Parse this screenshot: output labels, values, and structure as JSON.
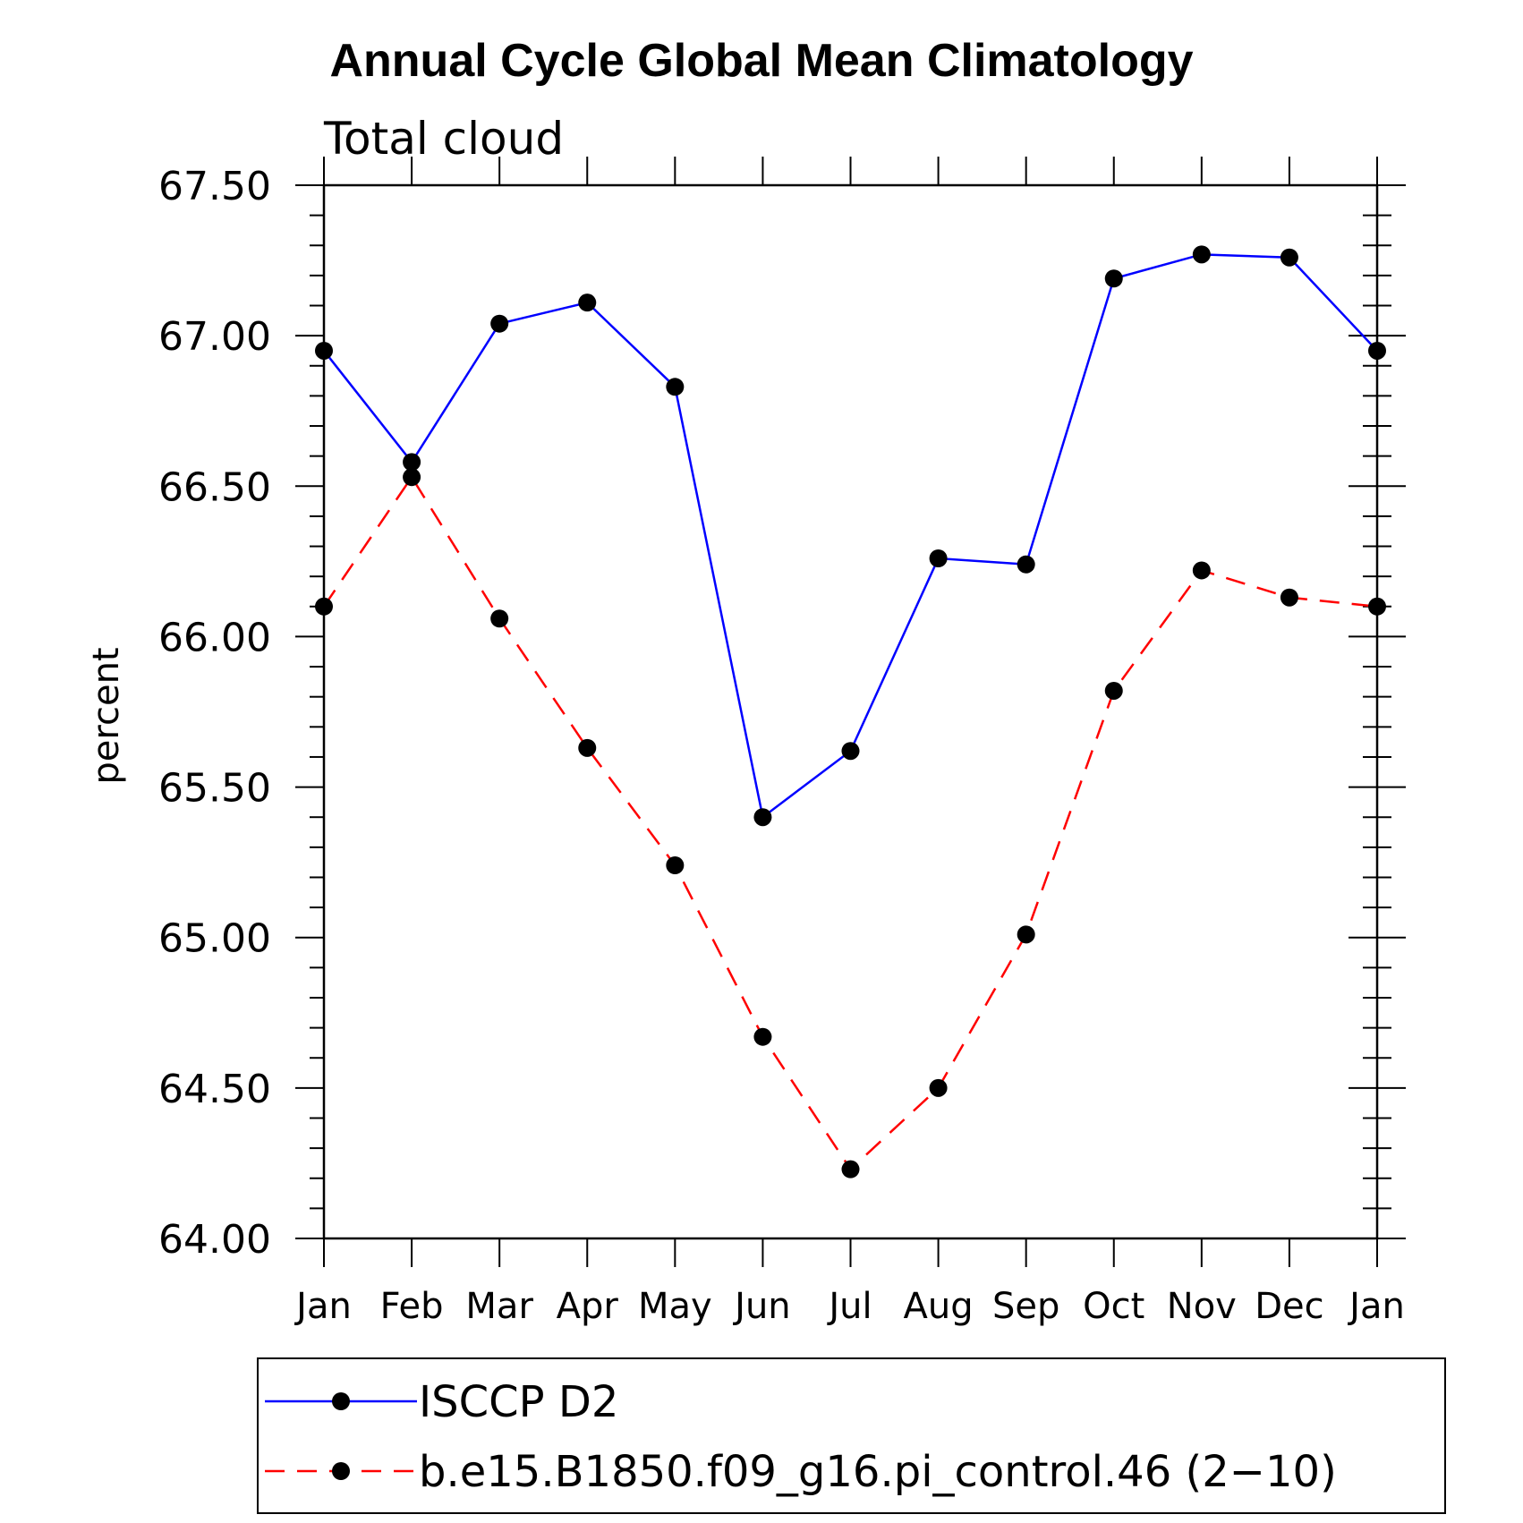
{
  "chart_data": {
    "type": "line",
    "title": "Annual Cycle Global Mean Climatology",
    "subtitle": "Total cloud",
    "ylabel": "percent",
    "xlabel": "",
    "categories": [
      "Jan",
      "Feb",
      "Mar",
      "Apr",
      "May",
      "Jun",
      "Jul",
      "Aug",
      "Sep",
      "Oct",
      "Nov",
      "Dec",
      "Jan"
    ],
    "ylim": [
      64.0,
      67.5
    ],
    "yticks": [
      "64.00",
      "64.50",
      "65.00",
      "65.50",
      "66.00",
      "66.50",
      "67.00",
      "67.50"
    ],
    "series": [
      {
        "name": "ISCCP D2",
        "color": "#0000ff",
        "dash": "solid",
        "values": [
          66.95,
          66.58,
          67.04,
          67.11,
          66.83,
          65.4,
          65.62,
          66.26,
          66.24,
          67.19,
          67.27,
          67.26,
          66.95
        ]
      },
      {
        "name": "b.e15.B1850.f09_g16.pi_control.46 (2−10)",
        "color": "#ff0000",
        "dash": "dashed",
        "values": [
          66.1,
          66.53,
          66.06,
          65.63,
          65.24,
          64.67,
          64.23,
          64.5,
          65.01,
          65.82,
          66.22,
          66.13,
          66.1
        ]
      }
    ],
    "grid": false,
    "legend_position": "bottom"
  }
}
